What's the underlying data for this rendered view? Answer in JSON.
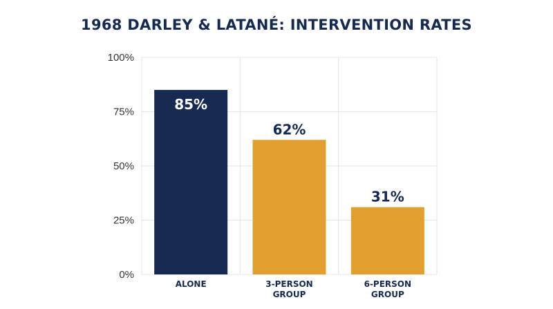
{
  "chart_data": {
    "type": "bar",
    "title": "1968 DARLEY & LATANÉ: INTERVENTION RATES",
    "categories": [
      [
        "ALONE"
      ],
      [
        "3-PERSON",
        "GROUP"
      ],
      [
        "6-PERSON",
        "GROUP"
      ]
    ],
    "values": [
      85,
      62,
      31
    ],
    "data_labels": [
      "85%",
      "62%",
      "31%"
    ],
    "bar_colors": [
      "#162a52",
      "#e19f2f",
      "#e19f2f"
    ],
    "label_colors": [
      "#ffffff",
      "#152a52",
      "#152a52"
    ],
    "ylim": [
      0,
      100
    ],
    "yticks": [
      0,
      25,
      50,
      75,
      100
    ],
    "ytick_labels": [
      "0%",
      "25%",
      "50%",
      "75%",
      "100%"
    ],
    "xlabel": "",
    "ylabel": "",
    "grid": true,
    "legend": "none"
  }
}
